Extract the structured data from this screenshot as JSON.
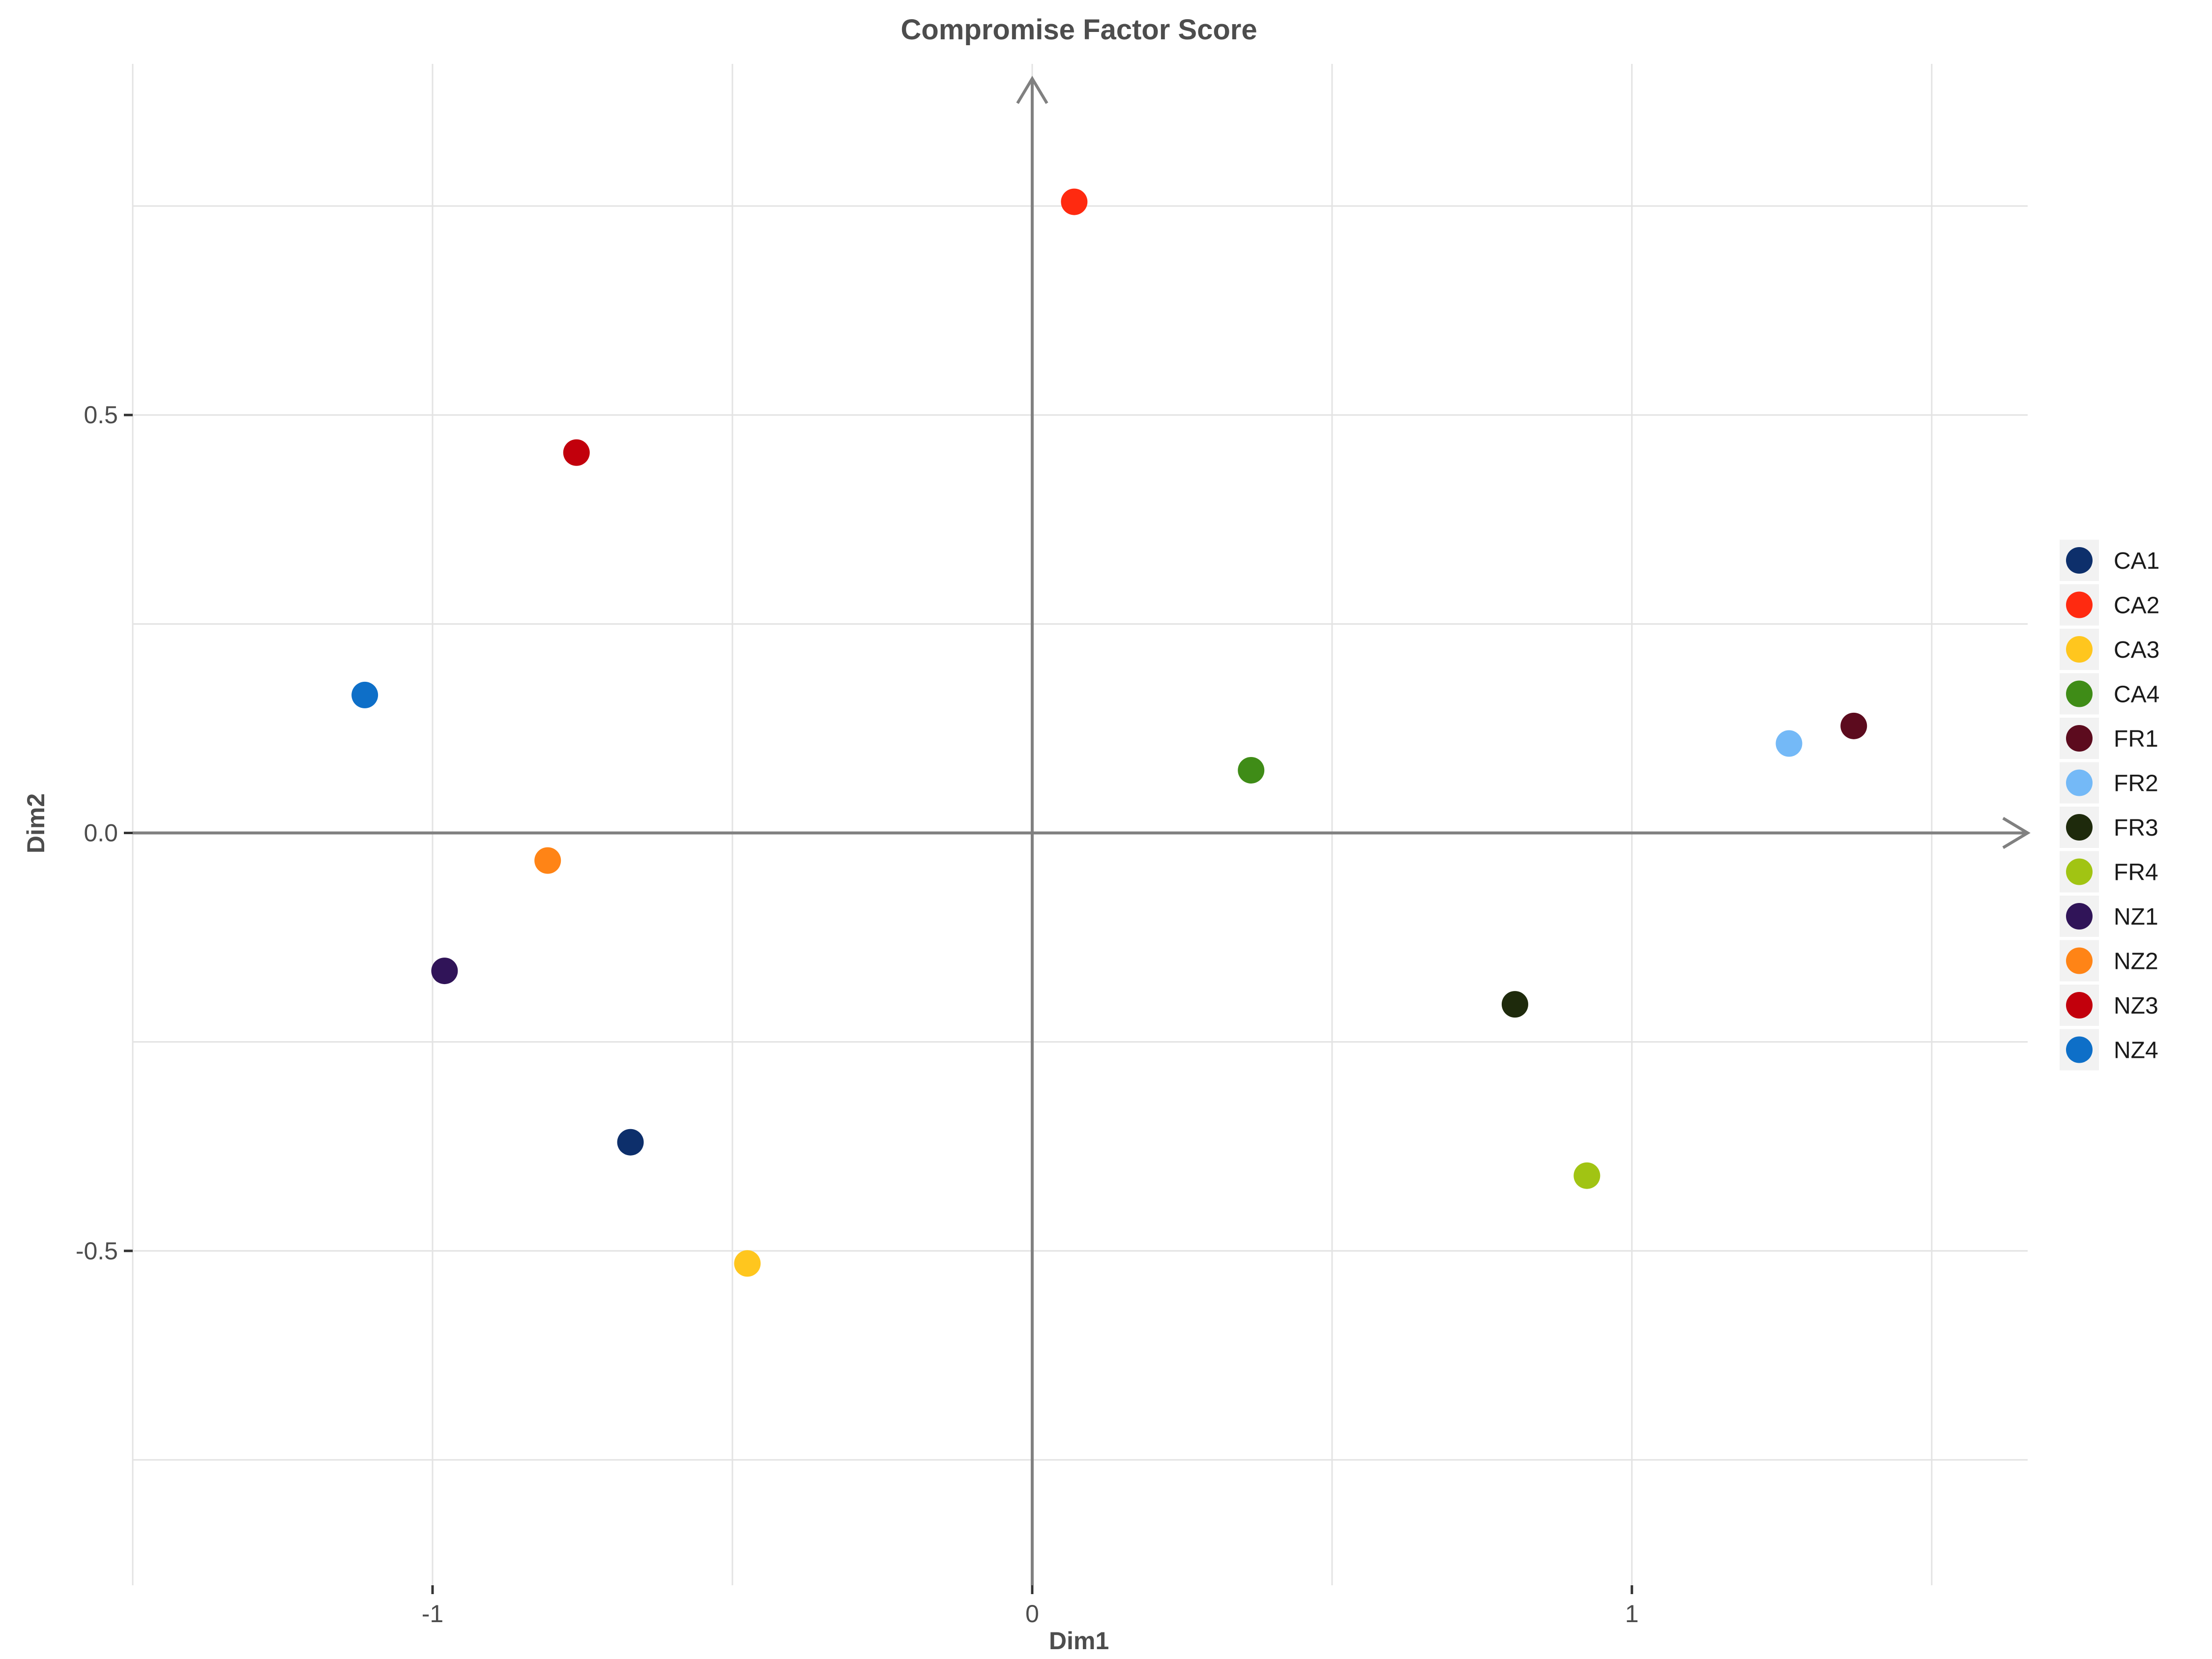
{
  "chart_data": {
    "type": "scatter",
    "title": "Compromise Factor Score",
    "xlabel": "Dim1",
    "ylabel": "Dim2",
    "xlim": [
      -1.5,
      1.66
    ],
    "ylim": [
      -0.9,
      0.92
    ],
    "x_ticks": [
      -1,
      0,
      1
    ],
    "x_tick_labels": [
      "-1",
      "0",
      "1"
    ],
    "y_ticks": [
      0.5,
      0.0,
      -0.5
    ],
    "y_tick_labels": [
      "0.5",
      "0.0",
      "-0.5"
    ],
    "x_grid_lines": [
      -1.5,
      -1,
      -0.5,
      0,
      0.5,
      1,
      1.5
    ],
    "y_grid_lines": [
      0.75,
      0.5,
      0.25,
      0,
      -0.25,
      -0.5,
      -0.75
    ],
    "grid": true,
    "legend_position": "right",
    "axis_color": "#808080",
    "points": [
      {
        "name": "CA1",
        "x": -0.67,
        "y": -0.37,
        "color": "#0d2f6b"
      },
      {
        "name": "CA2",
        "x": 0.07,
        "y": 0.755,
        "color": "#ff2a10"
      },
      {
        "name": "CA3",
        "x": -0.475,
        "y": -0.515,
        "color": "#ffc61e"
      },
      {
        "name": "CA4",
        "x": 0.365,
        "y": 0.075,
        "color": "#3f8c17"
      },
      {
        "name": "FR1",
        "x": 1.37,
        "y": 0.128,
        "color": "#5c0b1e"
      },
      {
        "name": "FR2",
        "x": 1.262,
        "y": 0.107,
        "color": "#74b9f7"
      },
      {
        "name": "FR3",
        "x": 0.805,
        "y": -0.205,
        "color": "#1e2a0c"
      },
      {
        "name": "FR4",
        "x": 0.925,
        "y": -0.41,
        "color": "#a1c413"
      },
      {
        "name": "NZ1",
        "x": -0.98,
        "y": -0.165,
        "color": "#301458"
      },
      {
        "name": "NZ2",
        "x": -0.808,
        "y": -0.033,
        "color": "#ff8416"
      },
      {
        "name": "NZ3",
        "x": -0.76,
        "y": 0.455,
        "color": "#c2000c"
      },
      {
        "name": "NZ4",
        "x": -1.113,
        "y": 0.165,
        "color": "#0e6fc8"
      }
    ]
  }
}
